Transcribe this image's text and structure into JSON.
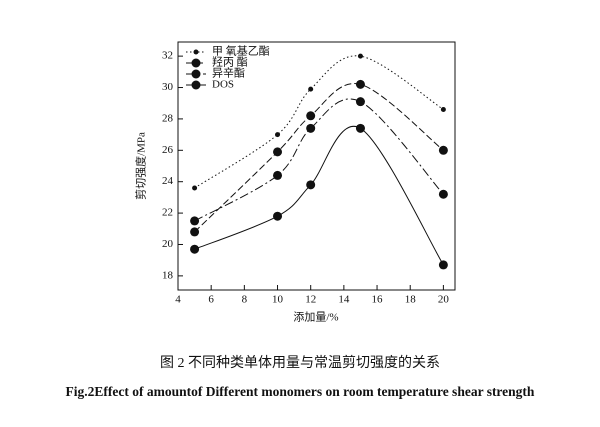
{
  "chart_data": {
    "type": "line",
    "x_label": "添加量/%",
    "y_label": "剪切强度/MPa",
    "xlim": [
      4,
      20.7
    ],
    "xticks": [
      4,
      6,
      8,
      10,
      12,
      14,
      16,
      18,
      20
    ],
    "ylim": [
      17.1,
      32.9
    ],
    "yticks": [
      18,
      20,
      22,
      24,
      26,
      28,
      30,
      32
    ],
    "x": [
      5,
      10,
      12,
      15,
      20
    ],
    "series": [
      {
        "name": "甲 氧基乙酯",
        "color": "#111111",
        "values": [
          23.6,
          27.0,
          29.9,
          32.0,
          28.6
        ]
      },
      {
        "name": "羟丙 酯",
        "color": "#111111",
        "values": [
          20.8,
          25.9,
          28.2,
          30.2,
          26.0
        ]
      },
      {
        "name": "异辛酯",
        "color": "#111111",
        "values": [
          21.5,
          24.4,
          27.4,
          29.1,
          23.2
        ]
      },
      {
        "name": "DOS",
        "color": "#111111",
        "values": [
          19.7,
          21.8,
          23.8,
          27.4,
          18.7
        ]
      }
    ],
    "legend": "upper-left",
    "caption_zh": "图 2 不同种类单体用量与常温剪切强度的关系",
    "caption_en": "Fig.2Effect of amountof Different monomers on room temperature shear strength"
  }
}
